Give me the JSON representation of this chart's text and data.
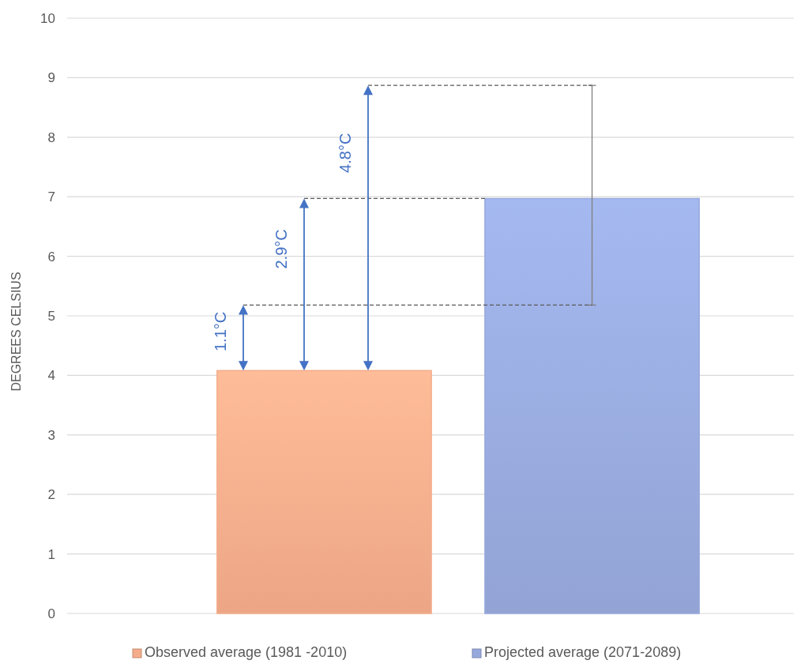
{
  "chart_data": {
    "type": "bar",
    "ylabel": "DEGREES CELSIUS",
    "categories": [
      null,
      null
    ],
    "series": [
      {
        "name": "Observed average (1981 -2010)",
        "color": "#f5ac8b",
        "values": [
          4.08,
          null
        ]
      },
      {
        "name": "Projected average (2071-2089)",
        "color": "#97a9dc",
        "values": [
          null,
          6.97
        ],
        "errors": [
          null,
          [
            5.18,
            8.87
          ]
        ]
      }
    ],
    "ylim": [
      0,
      10
    ],
    "yticks": [
      0,
      1,
      2,
      3,
      4,
      5,
      6,
      7,
      8,
      9,
      10
    ],
    "grid": "y",
    "legend": "bottom",
    "annotations": [
      "1.1°C",
      "2.9°C",
      "4.8°C"
    ]
  }
}
